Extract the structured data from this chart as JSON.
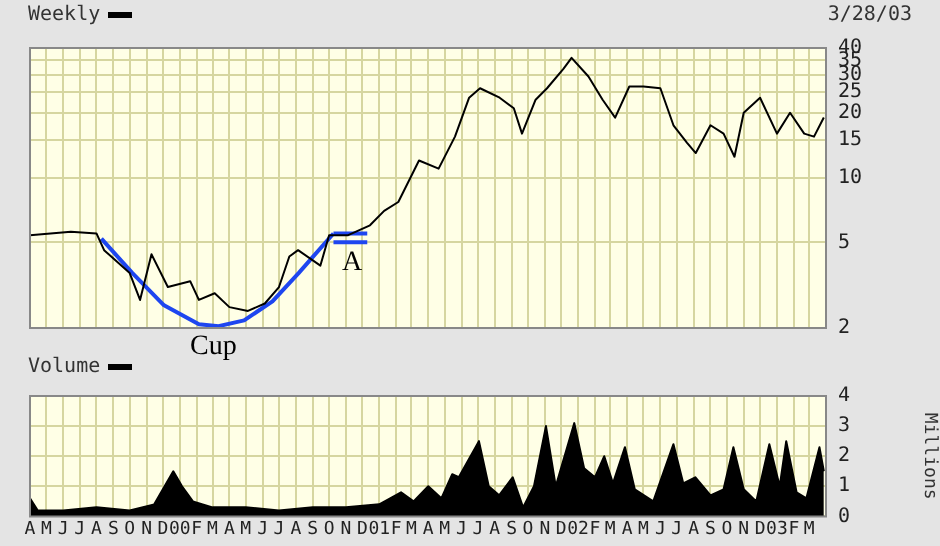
{
  "chart_data": [
    {
      "type": "line",
      "subtitle": "3/28/03",
      "legend": "top left",
      "log": "y",
      "grid": true,
      "marker": "none",
      "tick_labels": "y",
      "annotations": [
        "Cup",
        "A"
      ],
      "xlim": [
        "1999-04-01",
        "2003-04-01"
      ],
      "xticks": [
        {
          "value": "1999-04",
          "label": null
        },
        {
          "value": "1999-05",
          "label": null
        },
        {
          "value": "1999-06",
          "label": null
        },
        {
          "value": "1999-07",
          "label": null
        },
        {
          "value": "1999-08",
          "label": null
        },
        {
          "value": "1999-09",
          "label": null
        },
        {
          "value": "1999-10",
          "label": null
        },
        {
          "value": "1999-11",
          "label": null
        },
        {
          "value": "1999-12",
          "label": null
        },
        {
          "value": "2000-01",
          "label": null
        },
        {
          "value": "2000-02",
          "label": null
        },
        {
          "value": "2000-03",
          "label": null
        },
        {
          "value": "2000-04",
          "label": null
        },
        {
          "value": "2000-05",
          "label": null
        },
        {
          "value": "2000-06",
          "label": null
        },
        {
          "value": "2000-07",
          "label": null
        },
        {
          "value": "2000-08",
          "label": null
        },
        {
          "value": "2000-09",
          "label": null
        },
        {
          "value": "2000-10",
          "label": null
        },
        {
          "value": "2000-11",
          "label": null
        },
        {
          "value": "2000-12",
          "label": null
        },
        {
          "value": "2001-01",
          "label": null
        },
        {
          "value": "2001-02",
          "label": null
        },
        {
          "value": "2001-03",
          "label": null
        },
        {
          "value": "2001-04",
          "label": null
        },
        {
          "value": "2001-05",
          "label": null
        },
        {
          "value": "2001-06",
          "label": null
        },
        {
          "value": "2001-07",
          "label": null
        },
        {
          "value": "2001-08",
          "label": null
        },
        {
          "value": "2001-09",
          "label": null
        },
        {
          "value": "2001-10",
          "label": null
        },
        {
          "value": "2001-11",
          "label": null
        },
        {
          "value": "2001-12",
          "label": null
        },
        {
          "value": "2002-01",
          "label": null
        },
        {
          "value": "2002-02",
          "label": null
        },
        {
          "value": "2002-03",
          "label": null
        },
        {
          "value": "2002-04",
          "label": null
        },
        {
          "value": "2002-05",
          "label": null
        },
        {
          "value": "2002-06",
          "label": null
        },
        {
          "value": "2002-07",
          "label": null
        },
        {
          "value": "2002-08",
          "label": null
        },
        {
          "value": "2002-09",
          "label": null
        },
        {
          "value": "2002-10",
          "label": null
        },
        {
          "value": "2002-11",
          "label": null
        },
        {
          "value": "2002-12",
          "label": null
        },
        {
          "value": "2003-01",
          "label": null
        },
        {
          "value": "2003-02",
          "label": null
        },
        {
          "value": "2003-03",
          "label": null
        }
      ],
      "ylim": [
        2,
        40
      ],
      "yticks": [
        2,
        5,
        10,
        15,
        20,
        25,
        30,
        35,
        40
      ],
      "series": [
        {
          "name": "Weekly",
          "color": "#000000",
          "x": [
            "1999-04-01",
            "1999-06-15",
            "1999-08-01",
            "1999-08-15",
            "1999-10-01",
            "1999-10-20",
            "1999-11-10",
            "1999-12-10",
            "2000-01-20",
            "2000-02-05",
            "2000-03-05",
            "2000-04-01",
            "2000-05-05",
            "2000-06-05",
            "2000-07-01",
            "2000-07-20",
            "2000-08-05",
            "2000-09-15",
            "2000-10-01",
            "2000-11-05",
            "2000-12-15",
            "2001-01-10",
            "2001-02-05",
            "2001-03-15",
            "2001-04-20",
            "2001-05-20",
            "2001-06-15",
            "2001-07-05",
            "2001-08-10",
            "2001-09-05",
            "2001-09-20",
            "2001-10-15",
            "2001-11-05",
            "2001-12-05",
            "2001-12-20",
            "2002-01-20",
            "2002-02-15",
            "2002-03-10",
            "2002-04-05",
            "2002-05-01",
            "2002-06-01",
            "2002-06-25",
            "2002-07-20",
            "2002-08-05",
            "2002-09-01",
            "2002-09-25",
            "2002-10-15",
            "2002-11-01",
            "2002-12-01",
            "2003-01-01",
            "2003-01-25",
            "2003-02-20",
            "2003-03-10",
            "2003-03-28"
          ],
          "values": [
            5.4,
            5.6,
            5.5,
            4.6,
            3.6,
            2.7,
            4.4,
            3.1,
            3.3,
            2.7,
            2.9,
            2.5,
            2.4,
            2.6,
            3.1,
            4.3,
            4.6,
            3.9,
            5.4,
            5.4,
            6,
            7,
            7.7,
            12,
            11,
            15.5,
            23.5,
            26,
            23.5,
            21,
            16,
            23,
            26,
            32,
            36,
            29.5,
            23,
            19,
            26.5,
            26.5,
            26,
            17.5,
            14.5,
            13,
            17.5,
            16,
            12.5,
            20,
            23.5,
            16,
            20,
            16,
            15.5,
            19
          ]
        },
        {
          "type": "line",
          "color": "#1e46f0",
          "x": [
            "1999-08-10",
            "1999-10-06",
            "1999-12-03",
            "2000-02-05",
            "2000-03-12",
            "2000-04-28",
            "2000-06-19",
            "2000-08-06",
            "2000-10-09"
          ],
          "values": [
            5.2,
            3.6,
            2.55,
            2.08,
            2.04,
            2.17,
            2.66,
            3.6,
            5.5
          ]
        },
        {
          "type": "line",
          "color": "#1e46f0",
          "x": [
            "2000-10-09",
            "2000-12-10"
          ],
          "values": [
            5.5,
            5.5
          ]
        },
        {
          "type": "line",
          "color": "#1e46f0",
          "x": [
            "2000-10-09",
            "2000-12-10"
          ],
          "values": [
            5,
            5
          ]
        }
      ]
    },
    {
      "type": "area",
      "legend": "top left",
      "grid": true,
      "marker": "none",
      "ylabel": "Millions",
      "xlim": [
        "1999-04-01",
        "2003-04-01"
      ],
      "xticks": [
        {
          "value": "1999-04",
          "label": "A"
        },
        {
          "value": "1999-05",
          "label": "M"
        },
        {
          "value": "1999-06",
          "label": "J"
        },
        {
          "value": "1999-07",
          "label": "J"
        },
        {
          "value": "1999-08",
          "label": "A"
        },
        {
          "value": "1999-09",
          "label": "S"
        },
        {
          "value": "1999-10",
          "label": "O"
        },
        {
          "value": "1999-11",
          "label": "N"
        },
        {
          "value": "1999-12",
          "label": "D"
        },
        {
          "value": "2000-01",
          "label": "00"
        },
        {
          "value": "2000-02",
          "label": "F"
        },
        {
          "value": "2000-03",
          "label": "M"
        },
        {
          "value": "2000-04",
          "label": "A"
        },
        {
          "value": "2000-05",
          "label": "M"
        },
        {
          "value": "2000-06",
          "label": "J"
        },
        {
          "value": "2000-07",
          "label": "J"
        },
        {
          "value": "2000-08",
          "label": "A"
        },
        {
          "value": "2000-09",
          "label": "S"
        },
        {
          "value": "2000-10",
          "label": "O"
        },
        {
          "value": "2000-11",
          "label": "N"
        },
        {
          "value": "2000-12",
          "label": "D"
        },
        {
          "value": "2001-01",
          "label": "01"
        },
        {
          "value": "2001-02",
          "label": "F"
        },
        {
          "value": "2001-03",
          "label": "M"
        },
        {
          "value": "2001-04",
          "label": "A"
        },
        {
          "value": "2001-05",
          "label": "M"
        },
        {
          "value": "2001-06",
          "label": "J"
        },
        {
          "value": "2001-07",
          "label": "J"
        },
        {
          "value": "2001-08",
          "label": "A"
        },
        {
          "value": "2001-09",
          "label": "S"
        },
        {
          "value": "2001-10",
          "label": "O"
        },
        {
          "value": "2001-11",
          "label": "N"
        },
        {
          "value": "2001-12",
          "label": "D"
        },
        {
          "value": "2002-01",
          "label": "02"
        },
        {
          "value": "2002-02",
          "label": "F"
        },
        {
          "value": "2002-03",
          "label": "M"
        },
        {
          "value": "2002-04",
          "label": "A"
        },
        {
          "value": "2002-05",
          "label": "M"
        },
        {
          "value": "2002-06",
          "label": "J"
        },
        {
          "value": "2002-07",
          "label": "J"
        },
        {
          "value": "2002-08",
          "label": "A"
        },
        {
          "value": "2002-09",
          "label": "S"
        },
        {
          "value": "2002-10",
          "label": "O"
        },
        {
          "value": "2002-11",
          "label": "N"
        },
        {
          "value": "2002-12",
          "label": "D"
        },
        {
          "value": "2003-01",
          "label": "03"
        },
        {
          "value": "2003-02",
          "label": "F"
        },
        {
          "value": "2003-03",
          "label": "M"
        }
      ],
      "ylim": [
        0,
        4
      ],
      "yticks": [
        0,
        1,
        2,
        3,
        4
      ],
      "series": [
        {
          "name": "Volume",
          "color": "#000000",
          "x": [
            "1999-04-01",
            "1999-04-15",
            "1999-06-01",
            "1999-08-01",
            "1999-10-01",
            "1999-11-15",
            "1999-12-20",
            "2000-01-05",
            "2000-01-25",
            "2000-03-01",
            "2000-05-01",
            "2000-07-01",
            "2000-09-01",
            "2000-11-01",
            "2001-01-01",
            "2001-02-10",
            "2001-03-05",
            "2001-04-01",
            "2001-04-25",
            "2001-05-15",
            "2001-05-27",
            "2001-07-03",
            "2001-07-21",
            "2001-08-09",
            "2001-09-03",
            "2001-09-22",
            "2001-10-12",
            "2001-11-03",
            "2001-11-21",
            "2001-12-25",
            "2002-01-12",
            "2002-02-01",
            "2002-02-18",
            "2002-03-06",
            "2002-03-28",
            "2002-04-15",
            "2002-05-19",
            "2002-06-25",
            "2002-07-13",
            "2002-08-04",
            "2002-09-01",
            "2002-09-25",
            "2002-10-13",
            "2002-11-01",
            "2002-11-24",
            "2002-12-18",
            "2003-01-06",
            "2003-01-18",
            "2003-02-06",
            "2003-02-24",
            "2003-03-20",
            "2003-03-28"
          ],
          "values": [
            0.6,
            0.2,
            0.2,
            0.3,
            0.2,
            0.4,
            1.5,
            1,
            0.5,
            0.3,
            0.3,
            0.2,
            0.3,
            0.3,
            0.4,
            0.8,
            0.5,
            1,
            0.6,
            1.4,
            1.3,
            2.5,
            1,
            0.7,
            1.3,
            0.3,
            1,
            3,
            1,
            3.1,
            1.6,
            1.3,
            2,
            1.1,
            2.3,
            0.9,
            0.5,
            2.4,
            1.1,
            1.3,
            0.7,
            0.9,
            2.3,
            0.9,
            0.5,
            2.4,
            1,
            2.5,
            0.8,
            0.6,
            2.3,
            1.5
          ]
        }
      ]
    }
  ]
}
